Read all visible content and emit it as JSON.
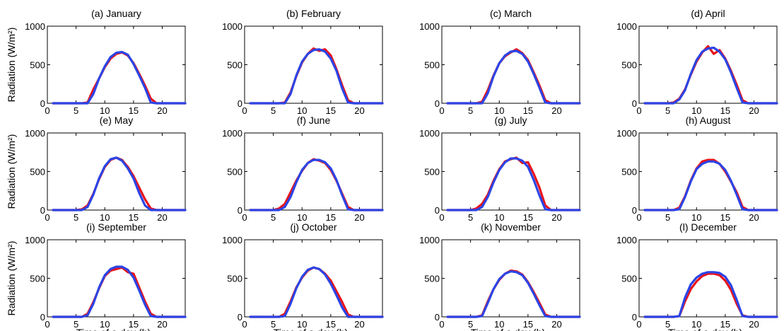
{
  "series_colors": {
    "red": "#e8141b",
    "blue": "#2b44e6"
  },
  "chart_data": [
    {
      "type": "line",
      "title": "(a) January",
      "ylabel": "Radiation (W/m²)",
      "xlabel": "",
      "xlim": [
        0,
        24
      ],
      "ylim": [
        0,
        1000
      ],
      "xticks": [
        0,
        5,
        10,
        15,
        20
      ],
      "yticks": [
        0,
        500,
        1000
      ],
      "x": [
        1,
        2,
        3,
        4,
        5,
        6,
        7,
        8,
        9,
        10,
        11,
        12,
        13,
        14,
        15,
        16,
        17,
        18,
        19,
        20,
        21,
        22,
        23,
        24
      ],
      "series": [
        {
          "color": "red",
          "values": [
            0,
            0,
            0,
            0,
            0,
            0,
            10,
            180,
            320,
            470,
            580,
            640,
            660,
            620,
            520,
            380,
            230,
            60,
            0,
            0,
            0,
            0,
            0,
            0
          ]
        },
        {
          "color": "blue",
          "values": [
            0,
            0,
            0,
            0,
            0,
            0,
            0,
            120,
            320,
            480,
            600,
            655,
            665,
            630,
            510,
            360,
            200,
            10,
            0,
            0,
            0,
            0,
            0,
            0
          ]
        }
      ]
    },
    {
      "type": "line",
      "title": "(b) February",
      "ylabel": "",
      "xlabel": "",
      "xlim": [
        0,
        24
      ],
      "ylim": [
        0,
        1000
      ],
      "xticks": [
        0,
        5,
        10,
        15,
        20
      ],
      "yticks": [
        0,
        500,
        1000
      ],
      "x": [
        1,
        2,
        3,
        4,
        5,
        6,
        7,
        8,
        9,
        10,
        11,
        12,
        13,
        14,
        15,
        16,
        17,
        18,
        19,
        20,
        21,
        22,
        23,
        24
      ],
      "series": [
        {
          "color": "red",
          "values": [
            0,
            0,
            0,
            0,
            0,
            0,
            10,
            140,
            350,
            530,
            640,
            710,
            680,
            700,
            620,
            440,
            230,
            40,
            0,
            0,
            0,
            0,
            0,
            0
          ]
        },
        {
          "color": "blue",
          "values": [
            0,
            0,
            0,
            0,
            0,
            0,
            0,
            120,
            360,
            540,
            640,
            690,
            700,
            670,
            580,
            420,
            190,
            10,
            0,
            0,
            0,
            0,
            0,
            0
          ]
        }
      ]
    },
    {
      "type": "line",
      "title": "(c) March",
      "ylabel": "",
      "xlabel": "",
      "xlim": [
        0,
        24
      ],
      "ylim": [
        0,
        1000
      ],
      "xticks": [
        0,
        5,
        10,
        15,
        20
      ],
      "yticks": [
        0,
        500,
        1000
      ],
      "x": [
        1,
        2,
        3,
        4,
        5,
        6,
        7,
        8,
        9,
        10,
        11,
        12,
        13,
        14,
        15,
        16,
        17,
        18,
        19,
        20,
        21,
        22,
        23,
        24
      ],
      "series": [
        {
          "color": "red",
          "values": [
            0,
            0,
            0,
            0,
            0,
            0,
            20,
            170,
            360,
            520,
            610,
            660,
            700,
            650,
            560,
            400,
            230,
            40,
            0,
            0,
            0,
            0,
            0,
            0
          ]
        },
        {
          "color": "blue",
          "values": [
            0,
            0,
            0,
            0,
            0,
            0,
            0,
            130,
            350,
            520,
            620,
            670,
            680,
            640,
            540,
            380,
            200,
            10,
            0,
            0,
            0,
            0,
            0,
            0
          ]
        }
      ]
    },
    {
      "type": "line",
      "title": "(d) April",
      "ylabel": "",
      "xlabel": "",
      "xlim": [
        0,
        24
      ],
      "ylim": [
        0,
        1000
      ],
      "xticks": [
        0,
        5,
        10,
        15,
        20
      ],
      "yticks": [
        0,
        500,
        1000
      ],
      "x": [
        1,
        2,
        3,
        4,
        5,
        6,
        7,
        8,
        9,
        10,
        11,
        12,
        13,
        14,
        15,
        16,
        17,
        18,
        19,
        20,
        21,
        22,
        23,
        24
      ],
      "series": [
        {
          "color": "red",
          "values": [
            0,
            0,
            0,
            0,
            0,
            10,
            60,
            180,
            370,
            540,
            660,
            740,
            640,
            690,
            580,
            420,
            240,
            40,
            0,
            0,
            0,
            0,
            0,
            0
          ]
        },
        {
          "color": "blue",
          "values": [
            0,
            0,
            0,
            0,
            0,
            0,
            50,
            170,
            380,
            560,
            670,
            710,
            720,
            670,
            570,
            400,
            200,
            10,
            0,
            0,
            0,
            0,
            0,
            0
          ]
        }
      ]
    },
    {
      "type": "line",
      "title": "(e) May",
      "ylabel": "Radiation (W/m²)",
      "xlabel": "",
      "xlim": [
        0,
        24
      ],
      "ylim": [
        0,
        1000
      ],
      "xticks": [
        0,
        5,
        10,
        15,
        20
      ],
      "yticks": [
        0,
        500,
        1000
      ],
      "x": [
        1,
        2,
        3,
        4,
        5,
        6,
        7,
        8,
        9,
        10,
        11,
        12,
        13,
        14,
        15,
        16,
        17,
        18,
        19,
        20,
        21,
        22,
        23,
        24
      ],
      "series": [
        {
          "color": "red",
          "values": [
            0,
            0,
            0,
            0,
            0,
            10,
            60,
            210,
            400,
            560,
            650,
            680,
            650,
            560,
            440,
            290,
            140,
            20,
            0,
            0,
            0,
            0,
            0,
            0
          ]
        },
        {
          "color": "blue",
          "values": [
            0,
            0,
            0,
            0,
            0,
            0,
            40,
            200,
            410,
            570,
            660,
            680,
            640,
            540,
            410,
            220,
            60,
            0,
            0,
            0,
            0,
            0,
            0,
            0
          ]
        }
      ]
    },
    {
      "type": "line",
      "title": "(f) June",
      "ylabel": "",
      "xlabel": "",
      "xlim": [
        0,
        24
      ],
      "ylim": [
        0,
        1000
      ],
      "xticks": [
        0,
        5,
        10,
        15,
        20
      ],
      "yticks": [
        0,
        500,
        1000
      ],
      "x": [
        1,
        2,
        3,
        4,
        5,
        6,
        7,
        8,
        9,
        10,
        11,
        12,
        13,
        14,
        15,
        16,
        17,
        18,
        19,
        20,
        21,
        22,
        23,
        24
      ],
      "series": [
        {
          "color": "red",
          "values": [
            0,
            0,
            0,
            0,
            0,
            20,
            80,
            230,
            380,
            510,
            610,
            660,
            640,
            610,
            520,
            380,
            210,
            40,
            0,
            0,
            0,
            0,
            0,
            0
          ]
        },
        {
          "color": "blue",
          "values": [
            0,
            0,
            0,
            0,
            0,
            0,
            40,
            170,
            360,
            520,
            610,
            650,
            650,
            620,
            540,
            390,
            190,
            10,
            0,
            0,
            0,
            0,
            0,
            0
          ]
        }
      ]
    },
    {
      "type": "line",
      "title": "(g) July",
      "ylabel": "",
      "xlabel": "",
      "xlim": [
        0,
        24
      ],
      "ylim": [
        0,
        1000
      ],
      "xticks": [
        0,
        5,
        10,
        15,
        20
      ],
      "yticks": [
        0,
        500,
        1000
      ],
      "x": [
        1,
        2,
        3,
        4,
        5,
        6,
        7,
        8,
        9,
        10,
        11,
        12,
        13,
        14,
        15,
        16,
        17,
        18,
        19,
        20,
        21,
        22,
        23,
        24
      ],
      "series": [
        {
          "color": "red",
          "values": [
            0,
            0,
            0,
            0,
            0,
            20,
            80,
            200,
            380,
            530,
            630,
            660,
            680,
            610,
            620,
            470,
            290,
            60,
            0,
            0,
            0,
            0,
            0,
            0
          ]
        },
        {
          "color": "blue",
          "values": [
            0,
            0,
            0,
            0,
            0,
            0,
            40,
            170,
            360,
            520,
            620,
            670,
            670,
            640,
            560,
            390,
            190,
            10,
            0,
            0,
            0,
            0,
            0,
            0
          ]
        }
      ]
    },
    {
      "type": "line",
      "title": "(h) August",
      "ylabel": "",
      "xlabel": "",
      "xlim": [
        0,
        24
      ],
      "ylim": [
        0,
        1000
      ],
      "xticks": [
        0,
        5,
        10,
        15,
        20
      ],
      "yticks": [
        0,
        500,
        1000
      ],
      "x": [
        1,
        2,
        3,
        4,
        5,
        6,
        7,
        8,
        9,
        10,
        11,
        12,
        13,
        14,
        15,
        16,
        17,
        18,
        19,
        20,
        21,
        22,
        23,
        24
      ],
      "series": [
        {
          "color": "red",
          "values": [
            0,
            0,
            0,
            0,
            0,
            0,
            30,
            180,
            380,
            540,
            630,
            650,
            650,
            600,
            500,
            370,
            230,
            40,
            0,
            0,
            0,
            0,
            0,
            0
          ]
        },
        {
          "color": "blue",
          "values": [
            0,
            0,
            0,
            0,
            0,
            0,
            10,
            170,
            370,
            530,
            600,
            630,
            630,
            600,
            520,
            380,
            200,
            10,
            0,
            0,
            0,
            0,
            0,
            0
          ]
        }
      ]
    },
    {
      "type": "line",
      "title": "(i) September",
      "ylabel": "Radiation (W/m²)",
      "xlabel": "Time of a day (h)",
      "xlim": [
        0,
        24
      ],
      "ylim": [
        0,
        1000
      ],
      "xticks": [
        0,
        5,
        10,
        15,
        20
      ],
      "yticks": [
        0,
        500,
        1000
      ],
      "x": [
        1,
        2,
        3,
        4,
        5,
        6,
        7,
        8,
        9,
        10,
        11,
        12,
        13,
        14,
        15,
        16,
        17,
        18,
        19,
        20,
        21,
        22,
        23,
        24
      ],
      "series": [
        {
          "color": "red",
          "values": [
            0,
            0,
            0,
            0,
            0,
            0,
            40,
            190,
            370,
            530,
            600,
            620,
            640,
            580,
            560,
            380,
            200,
            40,
            0,
            0,
            0,
            0,
            0,
            0
          ]
        },
        {
          "color": "blue",
          "values": [
            0,
            0,
            0,
            0,
            0,
            0,
            20,
            170,
            380,
            540,
            620,
            650,
            650,
            610,
            510,
            340,
            160,
            10,
            0,
            0,
            0,
            0,
            0,
            0
          ]
        }
      ]
    },
    {
      "type": "line",
      "title": "(j) October",
      "ylabel": "",
      "xlabel": "Time of a day (h)",
      "xlim": [
        0,
        24
      ],
      "ylim": [
        0,
        1000
      ],
      "xticks": [
        0,
        5,
        10,
        15,
        20
      ],
      "yticks": [
        0,
        500,
        1000
      ],
      "x": [
        1,
        2,
        3,
        4,
        5,
        6,
        7,
        8,
        9,
        10,
        11,
        12,
        13,
        14,
        15,
        16,
        17,
        18,
        19,
        20,
        21,
        22,
        23,
        24
      ],
      "series": [
        {
          "color": "red",
          "values": [
            0,
            0,
            0,
            0,
            0,
            0,
            40,
            200,
            380,
            510,
            600,
            640,
            620,
            560,
            470,
            330,
            190,
            30,
            0,
            0,
            0,
            0,
            0,
            0
          ]
        },
        {
          "color": "blue",
          "values": [
            0,
            0,
            0,
            0,
            0,
            0,
            10,
            170,
            370,
            520,
            610,
            640,
            620,
            550,
            430,
            280,
            120,
            0,
            0,
            0,
            0,
            0,
            0,
            0
          ]
        }
      ]
    },
    {
      "type": "line",
      "title": "(k) November",
      "ylabel": "",
      "xlabel": "Time of a day (h)",
      "xlim": [
        0,
        24
      ],
      "ylim": [
        0,
        1000
      ],
      "xticks": [
        0,
        5,
        10,
        15,
        20
      ],
      "yticks": [
        0,
        500,
        1000
      ],
      "x": [
        1,
        2,
        3,
        4,
        5,
        6,
        7,
        8,
        9,
        10,
        11,
        12,
        13,
        14,
        15,
        16,
        17,
        18,
        19,
        20,
        21,
        22,
        23,
        24
      ],
      "series": [
        {
          "color": "red",
          "values": [
            0,
            0,
            0,
            0,
            0,
            0,
            20,
            200,
            360,
            480,
            560,
            600,
            590,
            550,
            450,
            320,
            180,
            30,
            0,
            0,
            0,
            0,
            0,
            0
          ]
        },
        {
          "color": "blue",
          "values": [
            0,
            0,
            0,
            0,
            0,
            0,
            10,
            180,
            360,
            490,
            560,
            590,
            580,
            540,
            440,
            300,
            150,
            10,
            0,
            0,
            0,
            0,
            0,
            0
          ]
        }
      ]
    },
    {
      "type": "line",
      "title": "(l) December",
      "ylabel": "",
      "xlabel": "Time of a day (h)",
      "xlim": [
        0,
        24
      ],
      "ylim": [
        0,
        1000
      ],
      "xticks": [
        0,
        5,
        10,
        15,
        20
      ],
      "yticks": [
        0,
        500,
        1000
      ],
      "x": [
        1,
        2,
        3,
        4,
        5,
        6,
        7,
        8,
        9,
        10,
        11,
        12,
        13,
        14,
        15,
        16,
        17,
        18,
        19,
        20,
        21,
        22,
        23,
        24
      ],
      "series": [
        {
          "color": "red",
          "values": [
            0,
            0,
            0,
            0,
            0,
            0,
            10,
            200,
            360,
            460,
            530,
            560,
            560,
            540,
            470,
            350,
            170,
            20,
            0,
            0,
            0,
            0,
            0,
            0
          ]
        },
        {
          "color": "blue",
          "values": [
            0,
            0,
            0,
            0,
            0,
            0,
            10,
            250,
            420,
            510,
            560,
            580,
            580,
            570,
            520,
            410,
            220,
            10,
            0,
            0,
            0,
            0,
            0,
            0
          ]
        }
      ]
    }
  ]
}
